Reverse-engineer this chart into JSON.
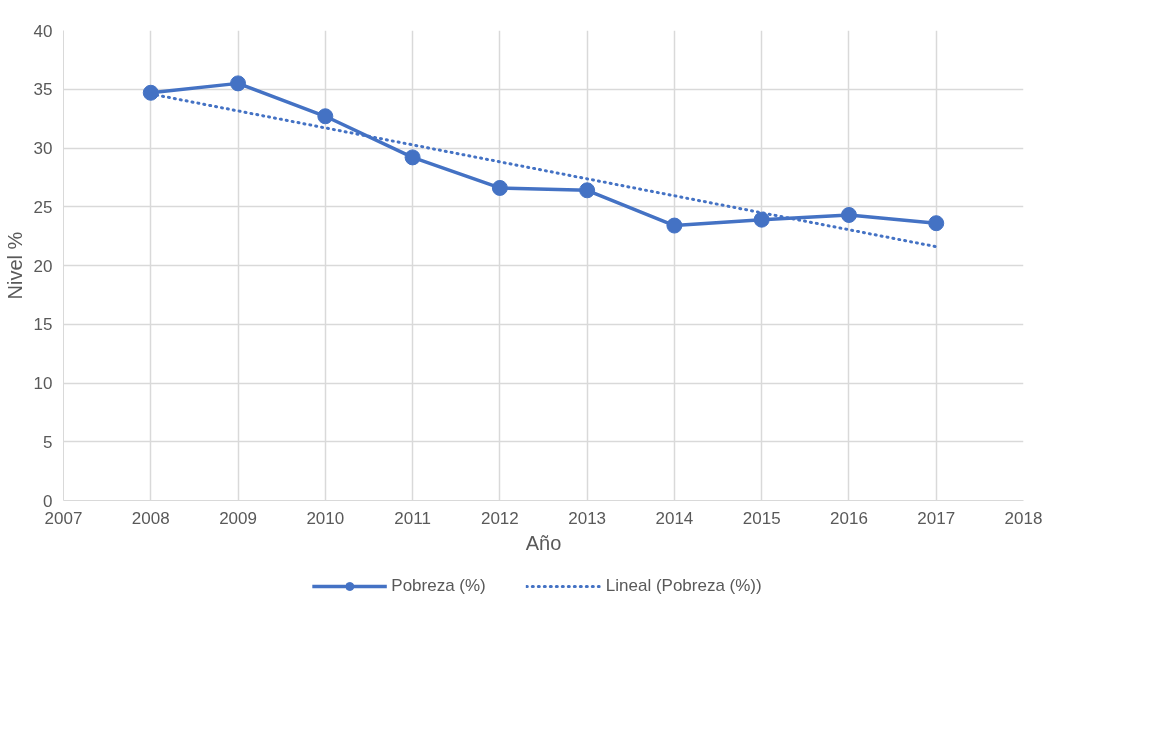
{
  "chart_data": {
    "type": "line",
    "xlabel": "Año",
    "ylabel": "Nivel %",
    "x": [
      2008,
      2009,
      2010,
      2011,
      2012,
      2013,
      2014,
      2015,
      2016,
      2017
    ],
    "series": [
      {
        "name": "Pobreza (%)",
        "color": "#4472c4",
        "values": [
          34.7,
          35.5,
          32.7,
          29.2,
          26.6,
          26.4,
          23.4,
          23.9,
          24.3,
          23.6
        ],
        "marker": "circle",
        "line_style": "solid"
      },
      {
        "name": "Lineal (Pobreza (%))",
        "color": "#4472c4",
        "type": "line",
        "x": [
          2008,
          2017
        ],
        "values": [
          34.6,
          21.6
        ],
        "marker": "none",
        "line_style": "dotted"
      }
    ],
    "xlim": [
      2007,
      2018
    ],
    "xticks": [
      2007,
      2008,
      2009,
      2010,
      2011,
      2012,
      2013,
      2014,
      2015,
      2016,
      2017,
      2018
    ],
    "ylim": [
      0,
      40
    ],
    "yticks": [
      0,
      5,
      10,
      15,
      20,
      25,
      30,
      35,
      40
    ],
    "grid": true,
    "legend": "bottom"
  }
}
